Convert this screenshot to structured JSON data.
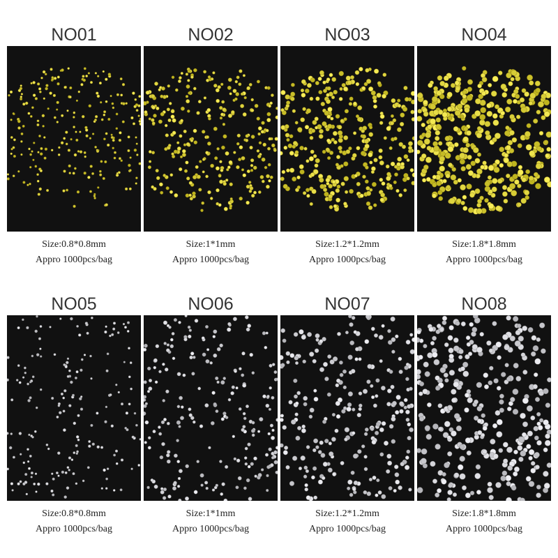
{
  "items": [
    {
      "title": "NO01",
      "size": "Size:0.8*0.8mm",
      "quantity": "Appro 1000pcs/bag"
    },
    {
      "title": "NO02",
      "size": "Size:1*1mm",
      "quantity": "Appro 1000pcs/bag"
    },
    {
      "title": "NO03",
      "size": "Size:1.2*1.2mm",
      "quantity": "Appro 1000pcs/bag"
    },
    {
      "title": "NO04",
      "size": "Size:1.8*1.8mm",
      "quantity": "Appro 1000pcs/bag"
    },
    {
      "title": "NO05",
      "size": "Size:0.8*0.8mm",
      "quantity": "Appro 1000pcs/bag"
    },
    {
      "title": "NO06",
      "size": "Size:1*1mm",
      "quantity": "Appro 1000pcs/bag"
    },
    {
      "title": "NO07",
      "size": "Size:1.2*1.2mm",
      "quantity": "Appro 1000pcs/bag"
    },
    {
      "title": "NO08",
      "size": "Size:1.8*1.8mm",
      "quantity": "Appro 1000pcs/bag"
    }
  ]
}
